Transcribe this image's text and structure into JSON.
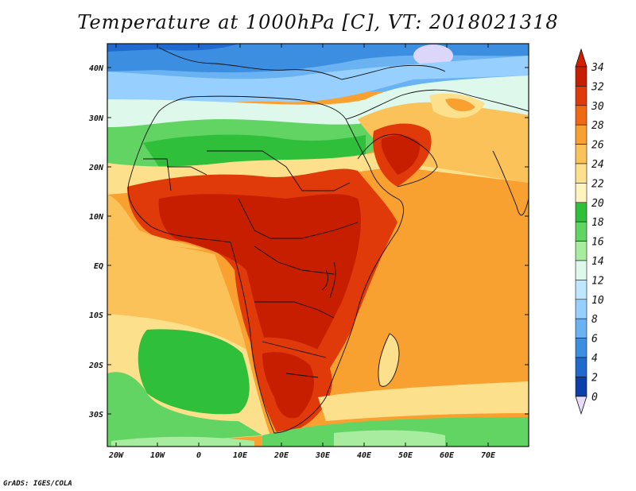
{
  "title": "Temperature at 1000hPa [C], VT: 2018021318",
  "credit": "GrADS: IGES/COLA",
  "lat_labels": [
    "40N",
    "30N",
    "20N",
    "10N",
    "EQ",
    "10S",
    "20S",
    "30S"
  ],
  "lon_labels": [
    "20W",
    "10W",
    "0",
    "10E",
    "20E",
    "30E",
    "40E",
    "50E",
    "60E",
    "70E"
  ],
  "colorbar": {
    "labels": [
      "34",
      "32",
      "30",
      "28",
      "26",
      "24",
      "22",
      "20",
      "18",
      "16",
      "14",
      "12",
      "10",
      "8",
      "6",
      "4",
      "2",
      "0"
    ],
    "colors": [
      "#c81e00",
      "#e03a0a",
      "#f06a14",
      "#f8a030",
      "#fcc25a",
      "#fde08c",
      "#fff3bf",
      "#2fbf3a",
      "#62d464",
      "#a8eca0",
      "#dff8ec",
      "#bfe6ff",
      "#97d0ff",
      "#6ab2f2",
      "#3c8fe0",
      "#1f69cf",
      "#0b3fa9",
      "#04197a"
    ],
    "top_arrow_color": "#d41e00",
    "bottom_arrow_color": "#e8dcfb"
  }
}
